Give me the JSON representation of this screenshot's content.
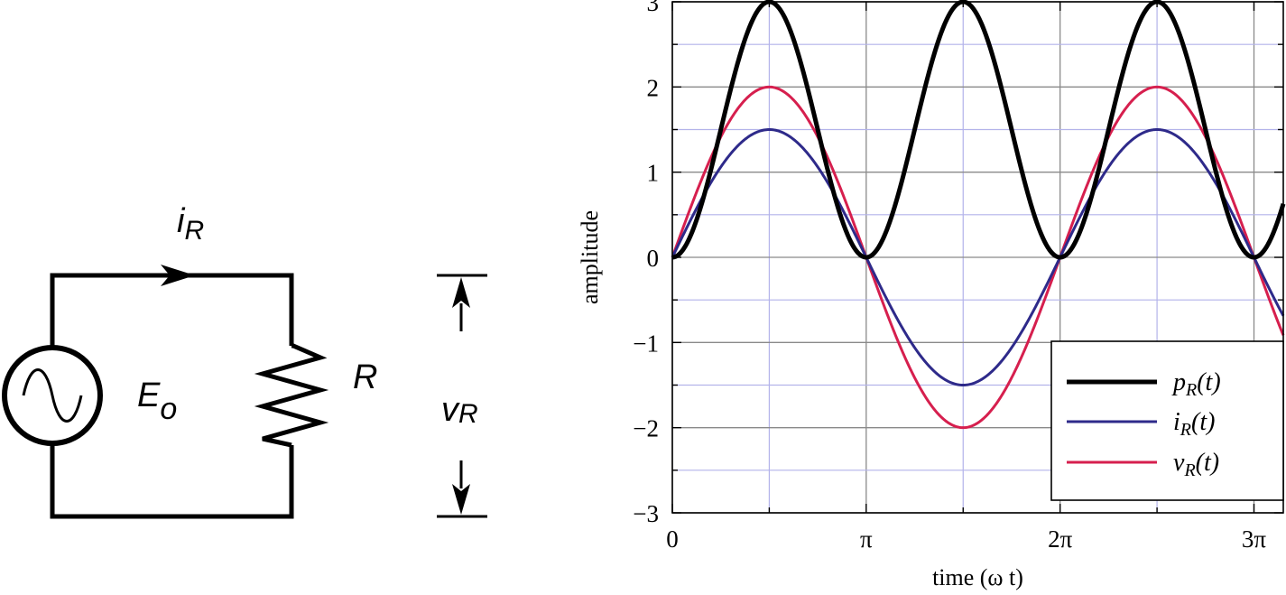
{
  "circuit": {
    "current_label": {
      "main": "i",
      "sub": "R"
    },
    "source_label": {
      "main": "E",
      "sub": "o"
    },
    "resistor_label": "R",
    "voltage_label": {
      "main": "v",
      "sub": "R"
    }
  },
  "chart_data": {
    "type": "line",
    "xlabel": "time (ω t)",
    "ylabel": "amplitude",
    "xlim": [
      0,
      9.9
    ],
    "ylim": [
      -3,
      3
    ],
    "xticks": [
      {
        "value": 0,
        "label": "0"
      },
      {
        "value": 3.14159,
        "label": "π"
      },
      {
        "value": 6.28319,
        "label": "2π"
      },
      {
        "value": 9.42478,
        "label": "3π"
      }
    ],
    "yticks": [
      -3,
      -2,
      -1,
      0,
      1,
      2,
      3
    ],
    "grid": true,
    "legend_position": "bottom-right",
    "series": [
      {
        "name": "p_R(t)",
        "legend_main": "p",
        "legend_sub": "R",
        "legend_arg": "(t)",
        "color": "#000000",
        "formula": "3*sin(x)^2",
        "peak": 3
      },
      {
        "name": "i_R(t)",
        "legend_main": "i",
        "legend_sub": "R",
        "legend_arg": "(t)",
        "color": "#2e2a8a",
        "formula": "1.5*sin(x)",
        "peak": 1.5
      },
      {
        "name": "v_R(t)",
        "legend_main": "v",
        "legend_sub": "R",
        "legend_arg": "(t)",
        "color": "#d61f4e",
        "formula": "2*sin(x)",
        "peak": 2
      }
    ]
  }
}
